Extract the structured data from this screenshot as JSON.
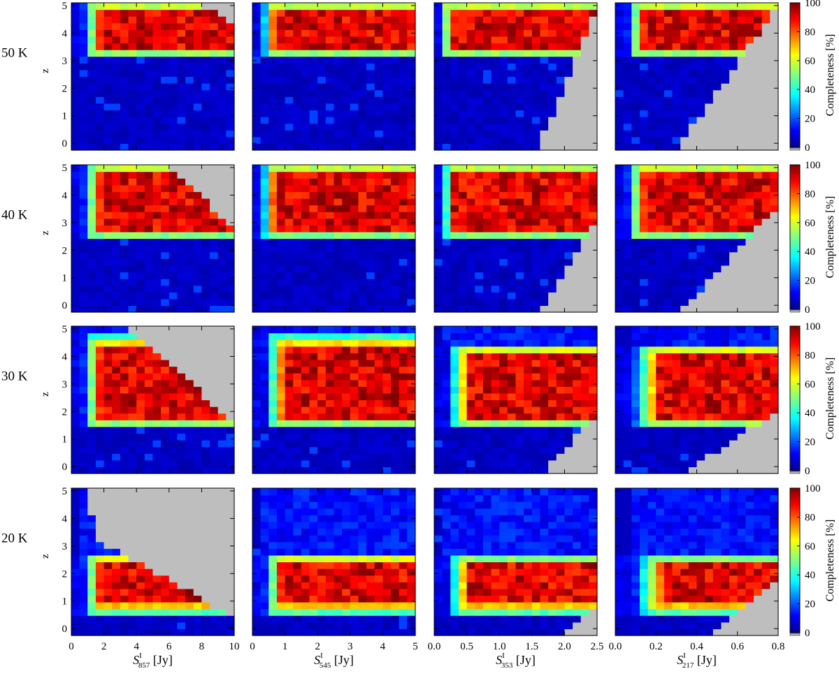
{
  "chart_data": {
    "type": "heatmap",
    "colorbar": {
      "label": "Completeness [%]",
      "ticks": [
        "100",
        "80",
        "60",
        "40",
        "20",
        "0"
      ],
      "range": [
        0,
        100
      ],
      "colormap": "jet",
      "missing_color": "#bebebe"
    },
    "row_labels": [
      "50 K",
      "40 K",
      "30 K",
      "20 K"
    ],
    "row_temperatures": [
      50,
      40,
      30,
      20
    ],
    "ylabel": "z",
    "y_ticks": [
      "0",
      "1",
      "2",
      "3",
      "4",
      "5"
    ],
    "ylim": [
      -0.25,
      5.1
    ],
    "columns": [
      {
        "label_main": "S",
        "label_sup": "I",
        "label_sub": "857",
        "label_unit": " [Jy]",
        "xlim": [
          0,
          10
        ],
        "ticks": [
          "0",
          "2",
          "4",
          "6",
          "8",
          "10"
        ]
      },
      {
        "label_main": "S",
        "label_sup": "I",
        "label_sub": "545",
        "label_unit": " [Jy]",
        "xlim": [
          0,
          5
        ],
        "ticks": [
          "0",
          "1",
          "2",
          "3",
          "4",
          "5"
        ]
      },
      {
        "label_main": "S",
        "label_sup": "I",
        "label_sub": "353",
        "label_unit": " [Jy]",
        "xlim": [
          0,
          2.5
        ],
        "ticks": [
          "0.0",
          "0.5",
          "1.0",
          "1.5",
          "2.0",
          "2.5"
        ]
      },
      {
        "label_main": "S",
        "label_sup": "I",
        "label_sub": "217",
        "label_unit": " [Jy]",
        "xlim": [
          0,
          0.8
        ],
        "ticks": [
          "0.0",
          "0.2",
          "0.4",
          "0.6",
          "0.8"
        ]
      }
    ],
    "grid_size": {
      "flux_bins": 20,
      "z_bins": 22
    },
    "rows": [
      {
        "temperature": "50 K",
        "detection_z_threshold": 3.2,
        "panels": [
          {
            "flux_onset": 0.12,
            "z_band_top": 5.1,
            "gray_region": "top-right",
            "gray_boundary": [
              [
                0.78,
                5.1
              ],
              [
                1.0,
                4.4
              ]
            ]
          },
          {
            "flux_onset": 0.09,
            "z_band_top": 5.1,
            "gray_region": "none",
            "gray_boundary": []
          },
          {
            "flux_onset": 0.07,
            "z_band_top": 5.1,
            "gray_region": "bottom-right",
            "gray_boundary": [
              [
                0.63,
                -0.25
              ],
              [
                1.0,
                4.9
              ]
            ]
          },
          {
            "flux_onset": 0.12,
            "z_band_top": 5.1,
            "gray_region": "bottom-right",
            "gray_boundary": [
              [
                0.37,
                -0.25
              ],
              [
                1.0,
                5.0
              ]
            ]
          }
        ]
      },
      {
        "temperature": "40 K",
        "detection_z_threshold": 2.5,
        "panels": [
          {
            "flux_onset": 0.12,
            "z_band_top": 5.1,
            "gray_region": "top-right",
            "gray_boundary": [
              [
                0.6,
                5.1
              ],
              [
                1.0,
                2.8
              ]
            ]
          },
          {
            "flux_onset": 0.09,
            "z_band_top": 5.1,
            "gray_region": "none",
            "gray_boundary": []
          },
          {
            "flux_onset": 0.08,
            "z_band_top": 5.1,
            "gray_region": "bottom-right",
            "gray_boundary": [
              [
                0.66,
                -0.25
              ],
              [
                1.0,
                3.2
              ]
            ]
          },
          {
            "flux_onset": 0.12,
            "z_band_top": 5.1,
            "gray_region": "bottom-right",
            "gray_boundary": [
              [
                0.4,
                -0.25
              ],
              [
                1.0,
                3.6
              ]
            ]
          }
        ]
      },
      {
        "temperature": "30 K",
        "detection_z_threshold": 1.5,
        "panels": [
          {
            "flux_onset": 0.12,
            "z_band_top": 4.7,
            "gray_region": "top-right",
            "gray_boundary": [
              [
                0.35,
                5.1
              ],
              [
                1.0,
                1.6
              ]
            ]
          },
          {
            "flux_onset": 0.13,
            "z_band_top": 4.7,
            "gray_region": "none",
            "gray_boundary": []
          },
          {
            "flux_onset": 0.14,
            "z_band_top": 4.4,
            "gray_region": "bottom-right",
            "gray_boundary": [
              [
                0.66,
                -0.25
              ],
              [
                1.0,
                1.9
              ]
            ]
          },
          {
            "flux_onset": 0.18,
            "z_band_top": 4.4,
            "gray_region": "bottom-right",
            "gray_boundary": [
              [
                0.4,
                -0.25
              ],
              [
                1.0,
                2.0
              ]
            ]
          }
        ]
      },
      {
        "temperature": "20 K",
        "detection_z_threshold": 0.6,
        "panels": [
          {
            "flux_onset": 0.12,
            "z_band_top": 2.7,
            "gray_region": "top-right",
            "gray_boundary": [
              [
                0.08,
                5.1
              ],
              [
                0.18,
                3.1
              ],
              [
                0.35,
                2.6
              ],
              [
                1.0,
                0.4
              ]
            ]
          },
          {
            "flux_onset": 0.12,
            "z_band_top": 2.7,
            "gray_region": "none",
            "gray_boundary": []
          },
          {
            "flux_onset": 0.14,
            "z_band_top": 2.6,
            "gray_region": "bottom-right",
            "gray_boundary": [
              [
                0.8,
                -0.25
              ],
              [
                1.0,
                0.8
              ]
            ]
          },
          {
            "flux_onset": 0.2,
            "z_band_top": 2.6,
            "gray_region": "bottom-right",
            "gray_boundary": [
              [
                0.57,
                -0.25
              ],
              [
                1.0,
                1.9
              ]
            ]
          }
        ]
      }
    ]
  }
}
